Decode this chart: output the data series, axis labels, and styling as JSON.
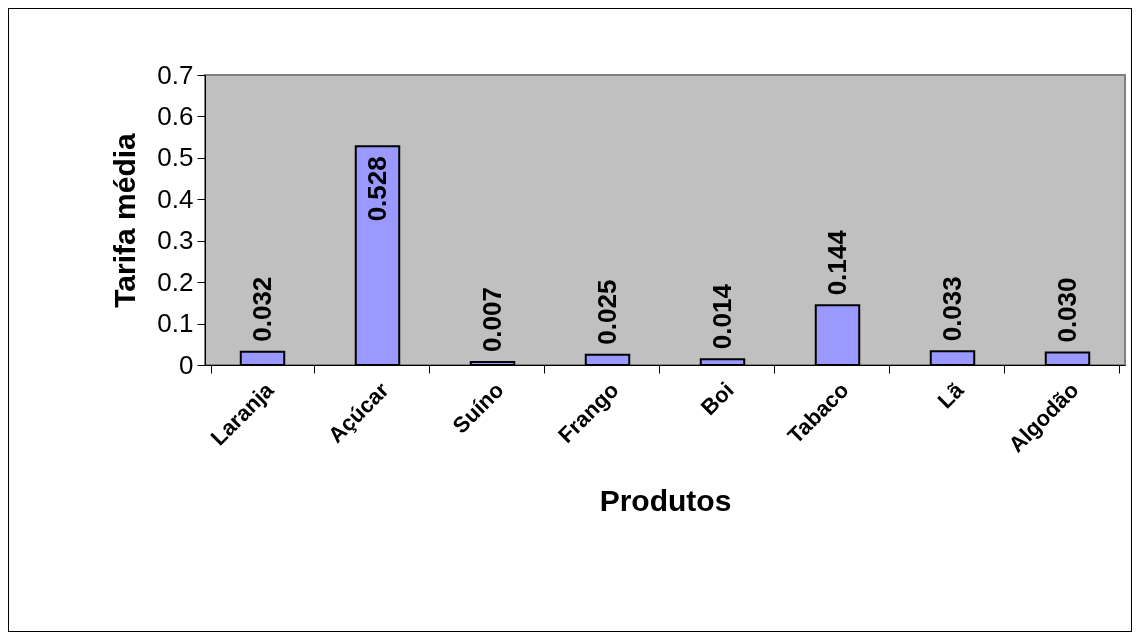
{
  "chart_data": {
    "type": "bar",
    "xlabel": "Produtos",
    "ylabel": "Tarifa média",
    "categories": [
      "Laranja",
      "Açúcar",
      "Suíno",
      "Frango",
      "Boi",
      "Tabaco",
      "Lã",
      "Algodão"
    ],
    "values": [
      0.032,
      0.528,
      0.007,
      0.025,
      0.014,
      0.144,
      0.033,
      0.03
    ],
    "value_labels": [
      "0.032",
      "0.528",
      "0.007",
      "0.025",
      "0.014",
      "0.144",
      "0.033",
      "0.030"
    ],
    "color": "#9999ff",
    "ylim": [
      0,
      0.7
    ],
    "yticks": [
      0,
      0.1,
      0.2,
      0.3,
      0.4,
      0.5,
      0.6,
      0.7
    ],
    "grid": false
  }
}
